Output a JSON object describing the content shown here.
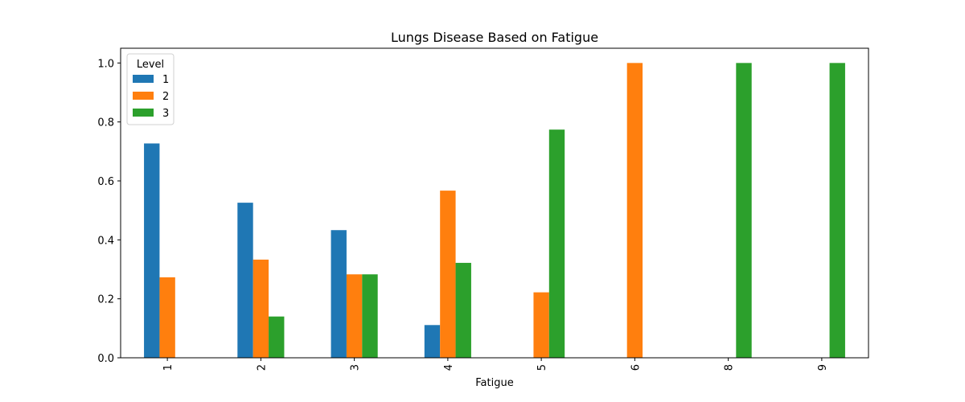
{
  "chart_data": {
    "type": "bar",
    "title": "Lungs Disease Based on Fatigue",
    "xlabel": "Fatigue",
    "ylabel": "",
    "categories": [
      "1",
      "2",
      "3",
      "4",
      "5",
      "6",
      "8",
      "9"
    ],
    "ylim": [
      0,
      1.05
    ],
    "yticks": [
      "0.0",
      "0.2",
      "0.4",
      "0.6",
      "0.8",
      "1.0"
    ],
    "ytick_values": [
      0,
      0.2,
      0.4,
      0.6,
      0.8,
      1.0
    ],
    "grid": false,
    "legend": {
      "title": "Level",
      "placement": "top-left"
    },
    "series": [
      {
        "name": "1",
        "color": "#1f77b4",
        "values": [
          0.727,
          0.526,
          0.433,
          0.111,
          0,
          0,
          0,
          0
        ]
      },
      {
        "name": "2",
        "color": "#ff7f0e",
        "values": [
          0.273,
          0.333,
          0.283,
          0.567,
          0.222,
          1.0,
          0,
          0
        ]
      },
      {
        "name": "3",
        "color": "#2ca02c",
        "values": [
          0,
          0.14,
          0.283,
          0.322,
          0.774,
          0,
          1.0,
          1.0
        ]
      }
    ]
  }
}
